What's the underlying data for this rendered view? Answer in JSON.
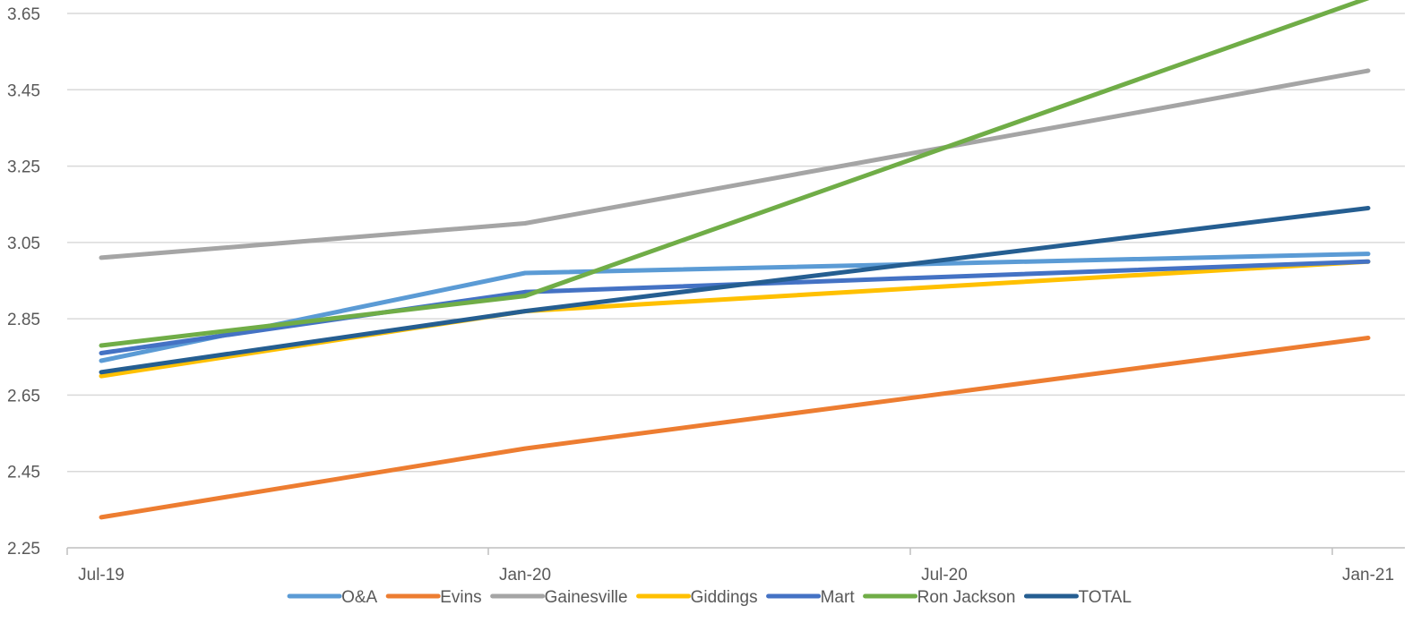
{
  "chart_data": {
    "type": "line",
    "title": "",
    "xlabel": "",
    "ylabel": "",
    "categories": [
      "Jul-19",
      "Jan-20",
      "Jul-20",
      "Jan-21"
    ],
    "x": [
      "2019-07-01",
      "2020-01-01",
      "2020-07-01",
      "2021-01-01"
    ],
    "y_ticks": [
      "2.25",
      "2.45",
      "2.65",
      "2.85",
      "3.05",
      "3.25",
      "3.45",
      "3.65"
    ],
    "ylim": [
      2.25,
      3.65
    ],
    "grid": true,
    "legend_position": "bottom",
    "series": [
      {
        "name": "O&A",
        "color": "#5B9BD5",
        "points": [
          {
            "x": "2019-07-01",
            "y": 2.74
          },
          {
            "x": "2020-01-01",
            "y": 2.97
          },
          {
            "x": "2021-01-01",
            "y": 3.02
          }
        ]
      },
      {
        "name": "Evins",
        "color": "#ED7D31",
        "points": [
          {
            "x": "2019-07-01",
            "y": 2.33
          },
          {
            "x": "2020-01-01",
            "y": 2.51
          },
          {
            "x": "2021-01-01",
            "y": 2.8
          }
        ]
      },
      {
        "name": "Gainesville",
        "color": "#A5A5A5",
        "points": [
          {
            "x": "2019-07-01",
            "y": 3.01
          },
          {
            "x": "2020-01-01",
            "y": 3.1
          },
          {
            "x": "2021-01-01",
            "y": 3.5
          }
        ]
      },
      {
        "name": "Giddings",
        "color": "#FFC000",
        "points": [
          {
            "x": "2019-07-01",
            "y": 2.7
          },
          {
            "x": "2020-01-01",
            "y": 2.87
          },
          {
            "x": "2021-01-01",
            "y": 3.0
          }
        ]
      },
      {
        "name": "Mart",
        "color": "#4472C4",
        "points": [
          {
            "x": "2019-07-01",
            "y": 2.76
          },
          {
            "x": "2020-01-01",
            "y": 2.92
          },
          {
            "x": "2021-01-01",
            "y": 3.0
          }
        ]
      },
      {
        "name": "Ron Jackson",
        "color": "#70AD47",
        "points": [
          {
            "x": "2019-07-01",
            "y": 2.78
          },
          {
            "x": "2020-01-01",
            "y": 2.91
          },
          {
            "x": "2021-01-01",
            "y": 3.69
          }
        ]
      },
      {
        "name": "TOTAL",
        "color": "#255E91",
        "points": [
          {
            "x": "2019-07-01",
            "y": 2.71
          },
          {
            "x": "2020-01-01",
            "y": 2.87
          },
          {
            "x": "2021-01-01",
            "y": 3.14
          }
        ]
      }
    ]
  },
  "style": {
    "grid_color": "#D9D9D9",
    "axis_color": "#BFBFBF",
    "label_color": "#595959"
  }
}
